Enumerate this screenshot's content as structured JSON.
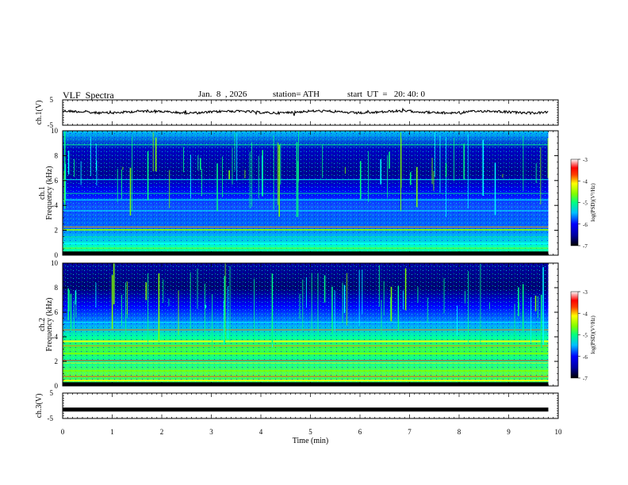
{
  "header": {
    "title": "VLF  Spectra",
    "date": "Jan.  8  , 2026",
    "station": "station= ATH",
    "start": "start  UT  =   20: 40: 0"
  },
  "chart_data": {
    "type": "heatmap",
    "title": "VLF  Spectra",
    "xlabel": "Time  (min)",
    "xlim": [
      0,
      10
    ],
    "xticks": [
      "0",
      "1",
      "2",
      "3",
      "4",
      "5",
      "6",
      "7",
      "8",
      "9",
      "10"
    ],
    "data_end_min": 9.8,
    "panels": [
      {
        "id": "ch1_wave",
        "ylabel": "ch.1(V)",
        "ylim": [
          -5,
          5
        ],
        "yticks": [
          "5",
          "-5"
        ],
        "trace_level_v": 0.2
      },
      {
        "id": "ch1_spec",
        "ylabel": "ch.1  Frequency  (kHz)",
        "ylim": [
          0,
          10
        ],
        "yticks": [
          "0",
          "2",
          "4",
          "6",
          "8",
          "10"
        ],
        "colorbar": {
          "label": "log(PSD)(V²/Hz)",
          "range": [
            -7,
            -3
          ],
          "ticks": [
            "-3",
            "-4",
            "-5",
            "-6",
            "-7"
          ]
        }
      },
      {
        "id": "ch2_spec",
        "ylabel": "ch.2  Frequency  (kHz)",
        "ylim": [
          0,
          10
        ],
        "yticks": [
          "0",
          "2",
          "4",
          "6",
          "8",
          "10"
        ],
        "colorbar": {
          "label": "log(PSD)(V²/Hz)",
          "range": [
            -7,
            -3
          ],
          "ticks": [
            "-3",
            "-4",
            "-5",
            "-6",
            "-7"
          ]
        }
      },
      {
        "id": "ch3_wave",
        "ylabel": "ch.3(V)",
        "ylim": [
          -5,
          5
        ],
        "yticks": [
          "5",
          "-5"
        ],
        "trace_level_v": -1.5
      }
    ],
    "colormap": [
      "#000080",
      "#0000ff",
      "#0080ff",
      "#00ffff",
      "#00ff80",
      "#80ff00",
      "#ffff00",
      "#ff8000",
      "#ff0000",
      "#ffffff"
    ]
  }
}
